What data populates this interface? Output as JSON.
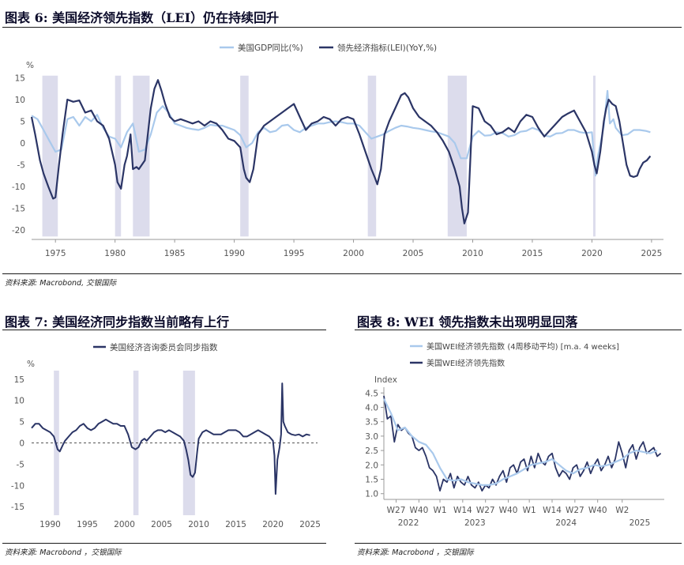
{
  "panels": {
    "fig6": {
      "title": "图表 6: 美国经济领先指数（LEI）仍在持续回升",
      "source": "资料来源: Macrobond, 交银国际"
    },
    "fig7": {
      "title": "图表 7: 美国经济同步指数当前略有上行",
      "source": "资料来源: Macrobond ，交银国际"
    },
    "fig8": {
      "title": "图表 8: WEI 领先指数未出现明显回落",
      "source": "资料来源: Macrobond ，交银国际"
    }
  },
  "colors": {
    "dark": "#2b3566",
    "light": "#a9c9ec",
    "recession": "#dcdcec",
    "text": "#555555"
  },
  "chart_data": [
    {
      "type": "line",
      "ylabel": "%",
      "ylim": [
        -22,
        16
      ],
      "xlim": [
        1973,
        2026
      ],
      "yticks": [
        -20,
        -15,
        -10,
        -5,
        0,
        5,
        10,
        15
      ],
      "xticks": [
        1975,
        1980,
        1985,
        1990,
        1995,
        2000,
        2005,
        2010,
        2015,
        2020,
        2025
      ],
      "recessions": [
        [
          1973.9,
          1975.2
        ],
        [
          1980.0,
          1980.5
        ],
        [
          1981.5,
          1982.9
        ],
        [
          1990.5,
          1991.2
        ],
        [
          2001.2,
          2001.9
        ],
        [
          2007.9,
          2009.5
        ],
        [
          2020.1,
          2020.3
        ]
      ],
      "series": [
        {
          "name": "美国GDP同比(%)",
          "x": [
            1973.0,
            1973.5,
            1974.0,
            1974.5,
            1975.0,
            1975.5,
            1976.0,
            1976.5,
            1977.0,
            1977.5,
            1978.0,
            1978.5,
            1979.0,
            1979.5,
            1980.0,
            1980.5,
            1981.0,
            1981.5,
            1982.0,
            1982.5,
            1983.0,
            1983.5,
            1984.0,
            1984.5,
            1985.0,
            1985.5,
            1986.0,
            1986.5,
            1987.0,
            1987.5,
            1988.0,
            1988.5,
            1989.0,
            1989.5,
            1990.0,
            1990.5,
            1991.0,
            1991.5,
            1992.0,
            1992.5,
            1993.0,
            1993.5,
            1994.0,
            1994.5,
            1995.0,
            1995.5,
            1996.0,
            1996.5,
            1997.0,
            1997.5,
            1998.0,
            1998.5,
            1999.0,
            1999.5,
            2000.0,
            2000.5,
            2001.0,
            2001.5,
            2002.0,
            2002.5,
            2003.0,
            2003.5,
            2004.0,
            2004.5,
            2005.0,
            2005.5,
            2006.0,
            2006.5,
            2007.0,
            2007.5,
            2008.0,
            2008.5,
            2009.0,
            2009.5,
            2010.0,
            2010.5,
            2011.0,
            2011.5,
            2012.0,
            2012.5,
            2013.0,
            2013.5,
            2014.0,
            2014.5,
            2015.0,
            2015.5,
            2016.0,
            2016.5,
            2017.0,
            2017.5,
            2018.0,
            2018.5,
            2019.0,
            2019.5,
            2020.0,
            2020.3,
            2020.5,
            2020.8,
            2021.0,
            2021.3,
            2021.5,
            2021.8,
            2022.0,
            2022.5,
            2023.0,
            2023.5,
            2024.0,
            2024.5,
            2024.9
          ],
          "y": [
            6.3,
            5.5,
            3.0,
            0.5,
            -2.0,
            -1.5,
            5.5,
            6.0,
            4.0,
            6.0,
            5.0,
            6.5,
            3.5,
            1.5,
            1.0,
            -1.0,
            2.5,
            4.5,
            -2.0,
            -1.5,
            2.0,
            7.0,
            8.5,
            7.0,
            4.5,
            4.0,
            3.5,
            3.2,
            3.0,
            3.5,
            4.2,
            4.0,
            4.0,
            3.5,
            3.0,
            1.8,
            -1.0,
            0.0,
            2.5,
            3.5,
            2.5,
            2.8,
            4.0,
            4.2,
            3.0,
            2.5,
            3.5,
            4.0,
            4.5,
            4.5,
            4.8,
            5.0,
            4.8,
            4.5,
            4.5,
            4.0,
            2.5,
            1.0,
            1.5,
            2.0,
            2.8,
            3.5,
            4.0,
            3.8,
            3.5,
            3.3,
            3.0,
            2.7,
            2.5,
            2.0,
            1.5,
            0.0,
            -3.5,
            -3.5,
            1.5,
            2.8,
            1.7,
            1.8,
            2.5,
            2.3,
            1.5,
            1.8,
            2.6,
            2.8,
            3.5,
            3.0,
            1.7,
            1.5,
            2.2,
            2.3,
            3.0,
            3.0,
            2.5,
            2.3,
            2.5,
            -7.5,
            -3.0,
            1.0,
            4.0,
            12.0,
            4.5,
            5.5,
            3.5,
            1.8,
            2.0,
            3.0,
            3.0,
            2.8,
            2.5
          ]
        },
        {
          "name": "领先经济指标(LEI)(YoY,%)",
          "x": [
            1973.0,
            1973.3,
            1973.7,
            1974.0,
            1974.4,
            1974.8,
            1975.0,
            1975.3,
            1975.6,
            1976.0,
            1976.5,
            1977.0,
            1977.5,
            1978.0,
            1978.5,
            1979.0,
            1979.5,
            1980.0,
            1980.2,
            1980.5,
            1980.8,
            1981.0,
            1981.3,
            1981.5,
            1981.8,
            1982.0,
            1982.5,
            1983.0,
            1983.3,
            1983.6,
            1983.9,
            1984.2,
            1984.6,
            1985.0,
            1985.5,
            1986.0,
            1986.5,
            1987.0,
            1987.5,
            1988.0,
            1988.5,
            1989.0,
            1989.5,
            1990.0,
            1990.5,
            1990.8,
            1991.0,
            1991.3,
            1991.6,
            1992.0,
            1992.5,
            1993.0,
            1993.5,
            1994.0,
            1994.5,
            1995.0,
            1995.5,
            1996.0,
            1996.5,
            1997.0,
            1997.5,
            1998.0,
            1998.5,
            1999.0,
            1999.5,
            2000.0,
            2000.5,
            2001.0,
            2001.5,
            2001.8,
            2002.0,
            2002.3,
            2002.6,
            2003.0,
            2003.5,
            2004.0,
            2004.3,
            2004.6,
            2005.0,
            2005.5,
            2006.0,
            2006.5,
            2007.0,
            2007.5,
            2008.0,
            2008.5,
            2008.9,
            2009.1,
            2009.3,
            2009.6,
            2010.0,
            2010.5,
            2011.0,
            2011.5,
            2012.0,
            2012.5,
            2013.0,
            2013.5,
            2014.0,
            2014.5,
            2015.0,
            2015.5,
            2016.0,
            2016.5,
            2017.0,
            2017.5,
            2018.0,
            2018.5,
            2019.0,
            2019.5,
            2020.0,
            2020.2,
            2020.4,
            2020.7,
            2021.0,
            2021.2,
            2021.4,
            2021.7,
            2022.0,
            2022.3,
            2022.6,
            2022.9,
            2023.2,
            2023.5,
            2023.8,
            2024.0,
            2024.3,
            2024.6,
            2024.9
          ],
          "y": [
            6.0,
            2.0,
            -4.0,
            -7.0,
            -10.0,
            -12.8,
            -12.5,
            -5.0,
            2.0,
            10.0,
            9.5,
            9.8,
            7.0,
            7.5,
            5.0,
            4.0,
            1.0,
            -5.0,
            -9.0,
            -10.5,
            -5.0,
            -3.0,
            2.0,
            -6.0,
            -5.5,
            -6.0,
            -4.0,
            8.0,
            12.5,
            14.5,
            12.0,
            9.0,
            6.0,
            5.0,
            5.5,
            5.0,
            4.5,
            5.0,
            4.0,
            5.0,
            4.5,
            3.0,
            1.0,
            0.5,
            -1.0,
            -6.0,
            -8.0,
            -9.0,
            -6.0,
            2.0,
            4.0,
            5.0,
            6.0,
            7.0,
            8.0,
            9.0,
            6.0,
            3.0,
            4.5,
            5.0,
            6.0,
            5.5,
            4.0,
            5.5,
            6.0,
            5.5,
            2.0,
            -2.0,
            -6.0,
            -8.0,
            -9.5,
            -6.0,
            2.0,
            5.0,
            8.0,
            11.0,
            11.5,
            10.5,
            8.0,
            6.0,
            5.0,
            4.0,
            2.5,
            0.5,
            -2.0,
            -6.0,
            -10.0,
            -15.0,
            -18.5,
            -16.0,
            8.5,
            8.0,
            5.0,
            4.0,
            2.0,
            2.5,
            3.5,
            2.5,
            5.0,
            6.5,
            6.0,
            3.5,
            1.5,
            3.0,
            4.5,
            6.0,
            6.8,
            7.5,
            5.0,
            2.5,
            -2.0,
            -5.0,
            -7.0,
            -2.0,
            5.0,
            8.0,
            10.0,
            9.0,
            8.5,
            5.0,
            0.0,
            -5.0,
            -7.5,
            -7.8,
            -7.5,
            -6.0,
            -4.5,
            -4.0,
            -3.0
          ]
        }
      ]
    },
    {
      "type": "line",
      "ylabel": "%",
      "ylim": [
        -17,
        17
      ],
      "xlim": [
        1987.5,
        2026
      ],
      "yticks": [
        -15,
        -10,
        -5,
        0,
        5,
        10,
        15
      ],
      "xticks": [
        1990,
        1995,
        2000,
        2005,
        2010,
        2015,
        2020,
        2025
      ],
      "recessions": [
        [
          1990.5,
          1991.2
        ],
        [
          2001.2,
          2001.9
        ],
        [
          2007.9,
          2009.5
        ]
      ],
      "series": [
        {
          "name": "美国经济咨询委员会同步指数",
          "x": [
            1987.5,
            1988.0,
            1988.5,
            1989.0,
            1989.5,
            1990.0,
            1990.5,
            1991.0,
            1991.3,
            1991.7,
            1992.0,
            1992.5,
            1993.0,
            1993.5,
            1994.0,
            1994.5,
            1995.0,
            1995.5,
            1996.0,
            1996.5,
            1997.0,
            1997.5,
            1998.0,
            1998.5,
            1999.0,
            1999.5,
            2000.0,
            2000.5,
            2001.0,
            2001.5,
            2001.9,
            2002.3,
            2002.7,
            2003.0,
            2003.5,
            2004.0,
            2004.5,
            2005.0,
            2005.5,
            2006.0,
            2006.5,
            2007.0,
            2007.5,
            2008.0,
            2008.3,
            2008.6,
            2008.9,
            2009.2,
            2009.5,
            2009.8,
            2010.0,
            2010.5,
            2011.0,
            2011.5,
            2012.0,
            2012.5,
            2013.0,
            2013.5,
            2014.0,
            2014.5,
            2015.0,
            2015.5,
            2016.0,
            2016.5,
            2017.0,
            2017.5,
            2018.0,
            2018.5,
            2019.0,
            2019.5,
            2020.0,
            2020.2,
            2020.35,
            2020.6,
            2020.9,
            2021.1,
            2021.25,
            2021.4,
            2021.6,
            2022.0,
            2022.5,
            2023.0,
            2023.5,
            2024.0,
            2024.5,
            2025.0
          ],
          "y": [
            3.5,
            4.5,
            4.5,
            3.5,
            3.0,
            2.5,
            1.5,
            -1.5,
            -2.0,
            -0.5,
            0.5,
            1.5,
            2.5,
            3.0,
            4.0,
            4.5,
            3.5,
            3.0,
            3.5,
            4.5,
            5.0,
            5.5,
            5.0,
            4.5,
            4.5,
            4.0,
            4.0,
            2.0,
            -1.0,
            -1.5,
            -1.0,
            0.5,
            1.0,
            0.5,
            1.5,
            2.5,
            3.0,
            3.0,
            2.5,
            3.0,
            2.5,
            2.0,
            1.5,
            0.5,
            -1.5,
            -4.0,
            -7.5,
            -8.0,
            -7.0,
            -2.0,
            1.0,
            2.5,
            3.0,
            2.5,
            2.0,
            2.0,
            2.0,
            2.5,
            3.0,
            3.0,
            3.0,
            2.5,
            1.5,
            1.5,
            2.0,
            2.5,
            3.0,
            2.5,
            2.0,
            1.5,
            0.5,
            -3.0,
            -12.0,
            -4.0,
            -1.0,
            2.0,
            14.0,
            5.0,
            4.0,
            2.5,
            2.0,
            1.8,
            2.0,
            1.5,
            2.0,
            1.8
          ]
        }
      ]
    },
    {
      "type": "line",
      "ylabel": "Index",
      "ylim": [
        0.8,
        4.7
      ],
      "yticks": [
        1.0,
        1.5,
        2.0,
        2.5,
        3.0,
        3.5,
        4.0,
        4.5
      ],
      "xlim": [
        0,
        160
      ],
      "xticks_labels": [
        "W27",
        "W40",
        "W1",
        "W14",
        "W27",
        "W40",
        "W1",
        "W14",
        "W27",
        "W40",
        "W2"
      ],
      "xticks_pos": [
        7,
        20,
        32,
        45,
        58,
        71,
        83,
        96,
        109,
        122,
        136
      ],
      "year_labels": [
        "2022",
        "2023",
        "2024",
        "2025"
      ],
      "year_label_pos": [
        14,
        52,
        104,
        146
      ],
      "series": [
        {
          "name": "美国WEI经济领先指数 (4周移动平均) [m.a. 4 weeks]",
          "x": [
            0,
            4,
            8,
            12,
            16,
            20,
            24,
            28,
            32,
            36,
            40,
            44,
            48,
            52,
            56,
            60,
            64,
            68,
            72,
            76,
            80,
            84,
            88,
            92,
            96,
            100,
            104,
            108,
            112,
            116,
            120,
            124,
            128,
            132,
            136,
            140,
            144,
            148,
            152,
            156
          ],
          "y": [
            4.3,
            3.8,
            3.2,
            3.3,
            3.0,
            2.8,
            2.7,
            2.4,
            1.9,
            1.5,
            1.45,
            1.5,
            1.4,
            1.35,
            1.3,
            1.3,
            1.35,
            1.5,
            1.6,
            1.7,
            1.85,
            2.0,
            2.05,
            2.1,
            2.2,
            2.0,
            1.8,
            1.7,
            1.85,
            1.9,
            2.0,
            1.95,
            2.0,
            2.1,
            2.2,
            2.4,
            2.5,
            2.45,
            2.4,
            2.5
          ]
        },
        {
          "name": "美国WEI经济领先指数",
          "x": [
            0,
            2,
            4,
            6,
            8,
            10,
            12,
            14,
            16,
            18,
            20,
            22,
            24,
            26,
            28,
            30,
            32,
            34,
            36,
            38,
            40,
            42,
            44,
            46,
            48,
            50,
            52,
            54,
            56,
            58,
            60,
            62,
            64,
            66,
            68,
            70,
            72,
            74,
            76,
            78,
            80,
            82,
            84,
            86,
            88,
            90,
            92,
            94,
            96,
            98,
            100,
            102,
            104,
            106,
            108,
            110,
            112,
            114,
            116,
            118,
            120,
            122,
            124,
            126,
            128,
            130,
            132,
            134,
            136,
            138,
            140,
            142,
            144,
            146,
            148,
            150,
            152,
            154,
            156,
            158
          ],
          "y": [
            4.4,
            3.6,
            3.7,
            2.8,
            3.4,
            3.2,
            3.3,
            3.1,
            3.0,
            2.6,
            2.5,
            2.6,
            2.3,
            1.9,
            1.8,
            1.6,
            1.1,
            1.5,
            1.4,
            1.7,
            1.2,
            1.6,
            1.4,
            1.3,
            1.6,
            1.3,
            1.2,
            1.4,
            1.1,
            1.3,
            1.2,
            1.5,
            1.3,
            1.6,
            1.8,
            1.4,
            1.9,
            2.0,
            1.7,
            2.1,
            2.2,
            1.8,
            2.3,
            1.9,
            2.4,
            2.1,
            2.0,
            2.3,
            2.4,
            1.9,
            1.6,
            1.8,
            1.7,
            1.5,
            1.9,
            2.0,
            1.6,
            1.8,
            2.1,
            1.7,
            2.0,
            2.2,
            1.8,
            2.0,
            2.3,
            1.9,
            2.2,
            2.8,
            2.4,
            1.9,
            2.5,
            2.7,
            2.2,
            2.6,
            2.8,
            2.4,
            2.5,
            2.6,
            2.3,
            2.4
          ]
        }
      ]
    }
  ]
}
